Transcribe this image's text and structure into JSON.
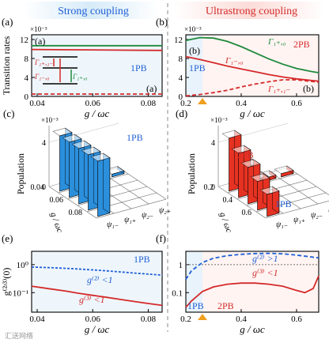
{
  "figure": {
    "header_left": "Strong coupling",
    "header_right": "Ultrastrong coupling",
    "watermark": "汇送网络",
    "colors": {
      "green": "#1f8a3c",
      "red": "#d42a2a",
      "blue": "#1f5fd6",
      "bar_blue": "#2b8fdc",
      "bar_red": "#e63222",
      "header_left_bg": "#d6ebf8",
      "header_right_bg": "#fbdcd8",
      "marker": "#f0a020"
    }
  },
  "chart_data": [
    {
      "panel": "(a)",
      "type": "line",
      "xlabel": "g / ωc",
      "ylabel": "Transition rates",
      "yexp": "×10⁻³",
      "xlim": [
        0.038,
        0.085
      ],
      "ylim": [
        0,
        13
      ],
      "xticks": [
        0.04,
        0.06,
        0.08
      ],
      "yticks": [
        0,
        4,
        8,
        12
      ],
      "inner_labels": [
        "(a)",
        "(a)"
      ],
      "region": "1PB",
      "series": [
        {
          "name": "Γ₁₊,₀",
          "color": "green",
          "dash": false,
          "x": [
            0.038,
            0.085
          ],
          "y": [
            10.7,
            10.7
          ]
        },
        {
          "name": "Γ₁₋,₀",
          "color": "red",
          "dash": false,
          "x": [
            0.038,
            0.085
          ],
          "y": [
            9.9,
            9.7
          ]
        },
        {
          "name": "Γ₁₊,₁₋",
          "color": "red",
          "dash": true,
          "x": [
            0.038,
            0.085
          ],
          "y": [
            0.5,
            0.5
          ]
        }
      ]
    },
    {
      "panel": "(b)",
      "type": "line",
      "xlabel": "g / ωc",
      "yexp": "×10⁻³",
      "xlim": [
        0.2,
        0.68
      ],
      "ylim": [
        0,
        13
      ],
      "xticks": [
        0.2,
        0.4,
        0.6
      ],
      "yticks": [
        0,
        4,
        8,
        12
      ],
      "inner_labels": [
        "(b)",
        "(b)"
      ],
      "regions": [
        "1PB",
        "2PB"
      ],
      "series": [
        {
          "name": "Γ₁₊,₀",
          "color": "green",
          "dash": false,
          "x": [
            0.2,
            0.25,
            0.3,
            0.35,
            0.4,
            0.45,
            0.5,
            0.55,
            0.6,
            0.65,
            0.68
          ],
          "y": [
            11.8,
            12.4,
            12.3,
            11.6,
            10.5,
            9.2,
            7.9,
            6.8,
            5.9,
            5.3,
            5.0
          ]
        },
        {
          "name": "Γ₁₋,₀",
          "color": "red",
          "dash": false,
          "x": [
            0.2,
            0.25,
            0.3,
            0.35,
            0.4,
            0.45,
            0.5,
            0.55,
            0.6,
            0.65,
            0.68
          ],
          "y": [
            8.4,
            7.8,
            7.1,
            6.4,
            5.8,
            5.2,
            4.6,
            4.1,
            3.7,
            3.4,
            3.2
          ]
        },
        {
          "name": "Γ₁₊,₁₋",
          "color": "red",
          "dash": true,
          "x": [
            0.2,
            0.25,
            0.3,
            0.35,
            0.4,
            0.45,
            0.5,
            0.55,
            0.6,
            0.65,
            0.68
          ],
          "y": [
            0.1,
            0.4,
            0.8,
            1.3,
            2.0,
            2.6,
            3.1,
            3.5,
            3.5,
            3.2,
            3.0
          ]
        }
      ]
    },
    {
      "panel": "(c)",
      "type": "bar3d",
      "zlabel": "Population",
      "yaxis_label": "g / ωc",
      "zexp": "×10⁻³",
      "zticks": [
        0,
        4
      ],
      "gticks": [
        0.04,
        0.06,
        0.08
      ],
      "states": [
        "ψ₁₋",
        "ψ₁₊",
        "ψ₂₋",
        "ψ₂₊"
      ],
      "region": "1PB",
      "bars": [
        {
          "state": 0,
          "g": 0.04,
          "value": 5
        },
        {
          "state": 0,
          "g": 0.05,
          "value": 5
        },
        {
          "state": 0,
          "g": 0.06,
          "value": 5
        },
        {
          "state": 0,
          "g": 0.07,
          "value": 5
        },
        {
          "state": 0,
          "g": 0.08,
          "value": 5
        },
        {
          "state": 1,
          "g": 0.04,
          "value": 0
        },
        {
          "state": 2,
          "g": 0.04,
          "value": 0
        },
        {
          "state": 3,
          "g": 0.04,
          "value": 0
        }
      ]
    },
    {
      "panel": "(d)",
      "type": "bar3d",
      "zlabel": "Population",
      "yaxis_label": "g / ωc",
      "zexp": "×10⁻³",
      "zticks": [
        0,
        4
      ],
      "gticks": [
        0.2,
        0.4,
        0.6
      ],
      "states": [
        "ψ₁₋",
        "ψ₁₊",
        "ψ₂₋",
        "ψ₂₊"
      ],
      "regions": [
        "2PB",
        "1PB"
      ],
      "bars": [
        {
          "state": 0,
          "g": 0.2,
          "value": 4.8
        },
        {
          "state": 0,
          "g": 0.3,
          "value": 4.0
        },
        {
          "state": 0,
          "g": 0.4,
          "value": 3.3
        },
        {
          "state": 0,
          "g": 0.5,
          "value": 2.6
        },
        {
          "state": 0,
          "g": 0.6,
          "value": 2.0
        },
        {
          "state": 1,
          "g": 0.2,
          "value": 1.8
        },
        {
          "state": 1,
          "g": 0.3,
          "value": 1.2
        },
        {
          "state": 2,
          "g": 0.2,
          "value": 0.3
        },
        {
          "state": 3,
          "g": 0.2,
          "value": 0.3
        }
      ]
    },
    {
      "panel": "(e)",
      "type": "line",
      "xlabel": "g / ωc",
      "ylabel": "g⁽²ʴ³⁾(0)",
      "scale": "log",
      "xlim": [
        0.038,
        0.085
      ],
      "ylim": [
        0.02,
        3
      ],
      "xticks": [
        0.04,
        0.06,
        0.08
      ],
      "ytick_labels": [
        "10⁻¹",
        "10⁰"
      ],
      "region": "1PB",
      "series": [
        {
          "name": "g⁽²⁾ <1",
          "color": "blue",
          "dash": true,
          "x": [
            0.038,
            0.045,
            0.05,
            0.055,
            0.06,
            0.065,
            0.07,
            0.075,
            0.08,
            0.085
          ],
          "y": [
            0.82,
            0.78,
            0.74,
            0.7,
            0.65,
            0.6,
            0.55,
            0.5,
            0.46,
            0.42
          ]
        },
        {
          "name": "g⁽³⁾ <1",
          "color": "red",
          "dash": false,
          "x": [
            0.038,
            0.045,
            0.05,
            0.055,
            0.06,
            0.065,
            0.07,
            0.075,
            0.08,
            0.085
          ],
          "y": [
            0.17,
            0.135,
            0.115,
            0.095,
            0.08,
            0.068,
            0.057,
            0.048,
            0.041,
            0.035
          ]
        }
      ]
    },
    {
      "panel": "(f)",
      "type": "line",
      "xlabel": "g / ωc",
      "scale": "log",
      "xlim": [
        0.2,
        0.68
      ],
      "ylim": [
        0.02,
        3
      ],
      "xticks": [
        0.2,
        0.4,
        0.6
      ],
      "ytick_labels": [
        "0.1",
        "1"
      ],
      "regions": [
        "1PB",
        "2PB"
      ],
      "reference_line": 1,
      "series": [
        {
          "name": "g⁽²⁾ >1",
          "color": "blue",
          "dash": true,
          "x": [
            0.2,
            0.22,
            0.26,
            0.3,
            0.35,
            0.4,
            0.45,
            0.5,
            0.55,
            0.6,
            0.65,
            0.68
          ],
          "y": [
            0.3,
            0.6,
            1.2,
            1.7,
            2.1,
            2.35,
            2.5,
            2.55,
            2.45,
            2.2,
            1.9,
            1.75
          ]
        },
        {
          "name": "g⁽³⁾ <1",
          "color": "red",
          "dash": false,
          "x": [
            0.2,
            0.22,
            0.26,
            0.3,
            0.35,
            0.4,
            0.45,
            0.5,
            0.55,
            0.6,
            0.63,
            0.66,
            0.68
          ],
          "y": [
            0.03,
            0.05,
            0.11,
            0.16,
            0.2,
            0.22,
            0.22,
            0.2,
            0.17,
            0.12,
            0.1,
            0.14,
            0.4
          ]
        }
      ]
    }
  ]
}
